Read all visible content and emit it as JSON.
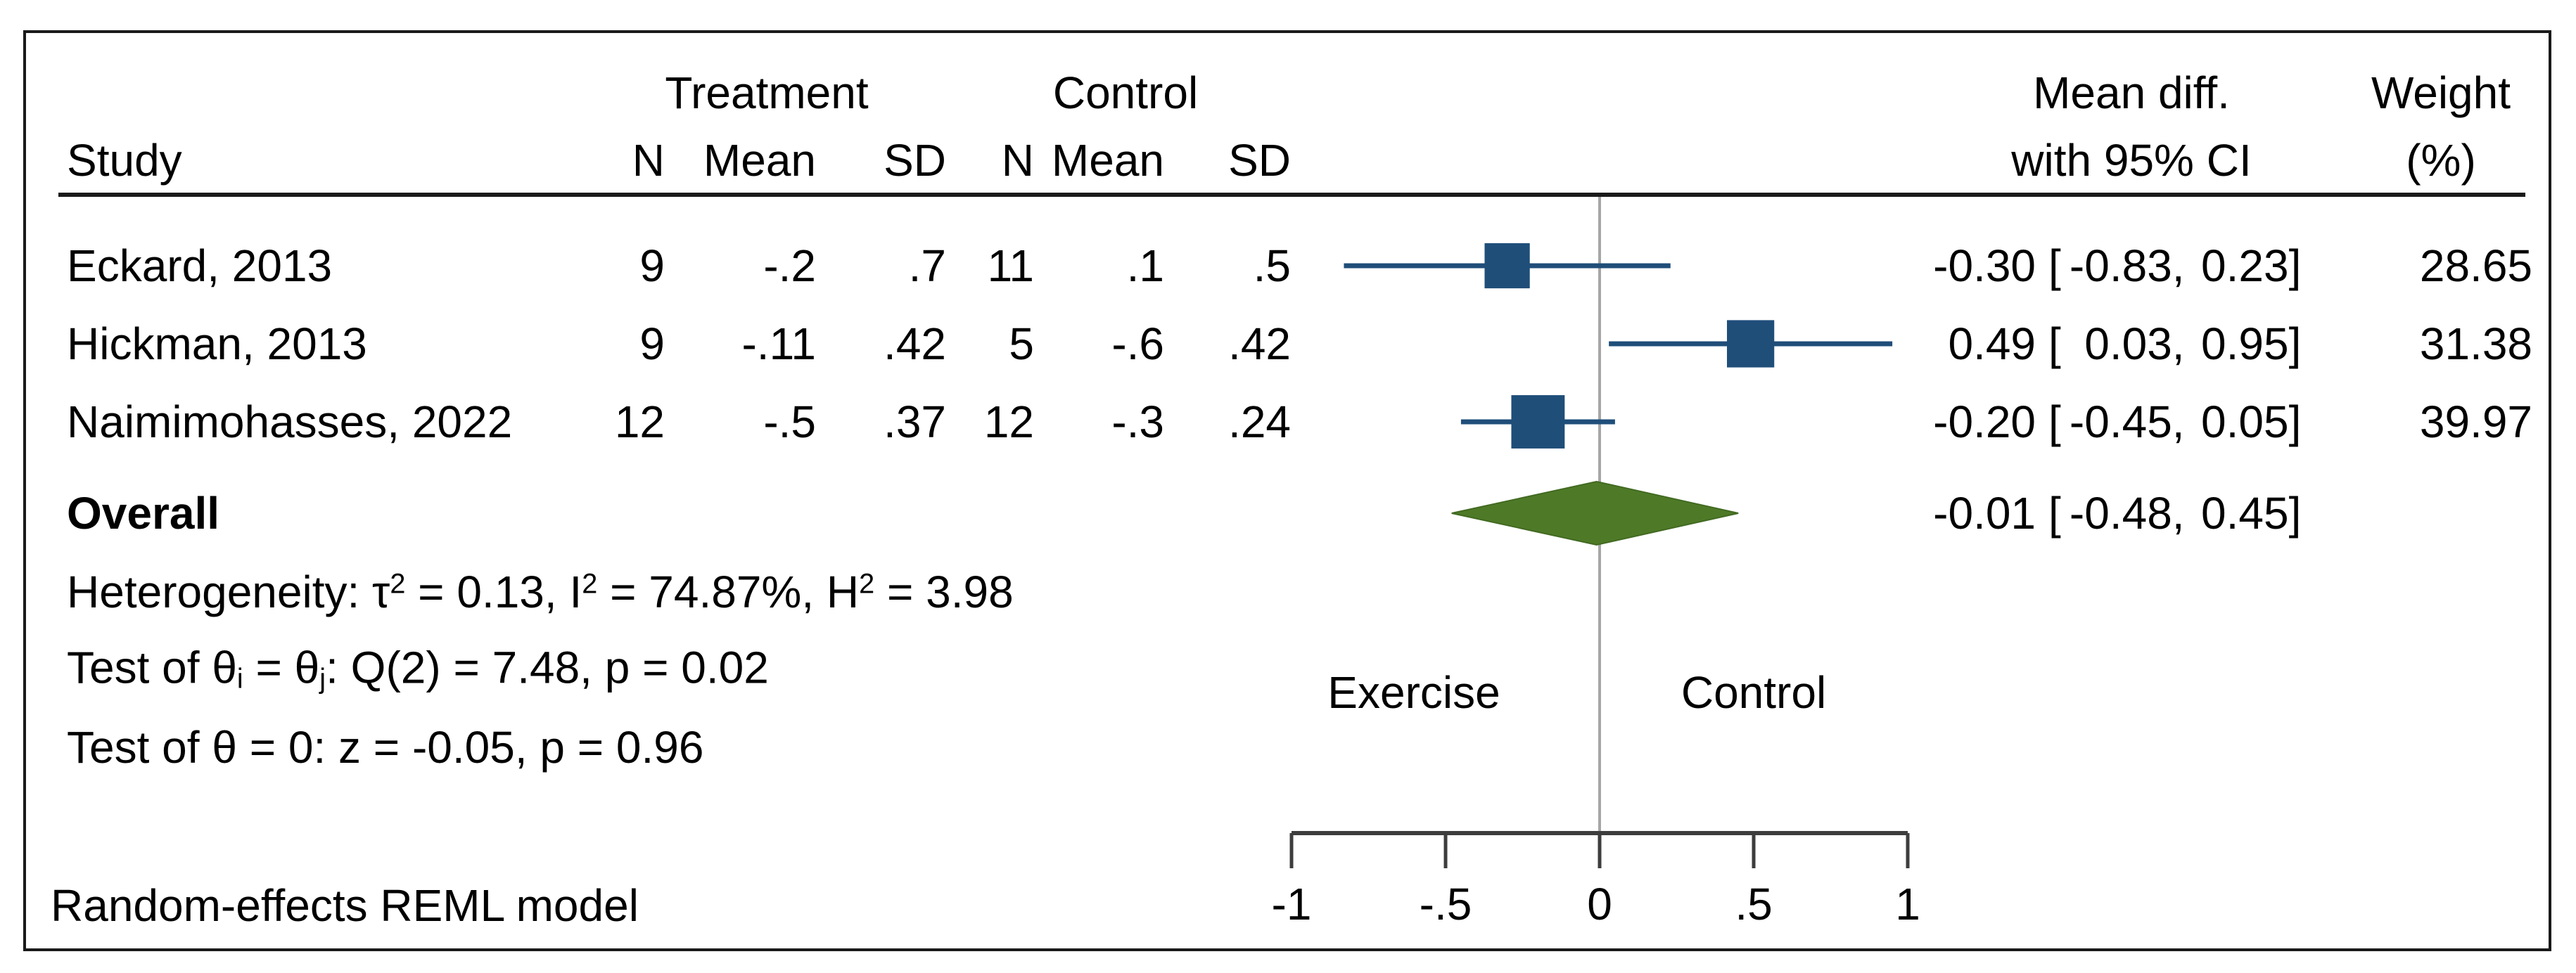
{
  "figure": {
    "header": {
      "study": "Study",
      "treatment_group": "Treatment",
      "control_group": "Control",
      "col_n": "N",
      "col_mean": "Mean",
      "col_sd": "SD",
      "effect_line1": "Mean diff.",
      "effect_line2": "with 95% CI",
      "weight_line1": "Weight",
      "weight_line2": "(%)"
    },
    "direction_left": "Exercise",
    "direction_right": "Control",
    "note": "Random-effects REML model"
  },
  "stats": {
    "heterogeneity": [
      {
        "t": "Heterogeneity: τ",
        "s": "n"
      },
      {
        "t": "2",
        "s": "sup"
      },
      {
        "t": " = 0.13, I",
        "s": "n"
      },
      {
        "t": "2",
        "s": "sup"
      },
      {
        "t": " = 74.87%, H",
        "s": "n"
      },
      {
        "t": "2",
        "s": "sup"
      },
      {
        "t": " = 3.98",
        "s": "n"
      }
    ],
    "test_q": [
      {
        "t": "Test of θ",
        "s": "n"
      },
      {
        "t": "i",
        "s": "sub"
      },
      {
        "t": " = θ",
        "s": "n"
      },
      {
        "t": "j",
        "s": "sub"
      },
      {
        "t": ": Q(2) = 7.48, p = 0.02",
        "s": "n"
      }
    ],
    "test_z": [
      {
        "t": "Test of θ = 0: z = -0.05, p = 0.96",
        "s": "n"
      }
    ]
  },
  "chart_data": {
    "type": "forest",
    "title": "",
    "x_axis": {
      "range": [
        -1,
        1
      ],
      "tick_values": [
        -1,
        -0.5,
        0,
        0.5,
        1
      ],
      "tick_labels": [
        "-1",
        "-.5",
        "0",
        ".5",
        "1"
      ]
    },
    "reference_line": 0,
    "studies": [
      {
        "label": "Eckard, 2013",
        "t_n": "9",
        "t_mean": "-.2",
        "t_sd": ".7",
        "c_n": "11",
        "c_mean": ".1",
        "c_sd": ".5",
        "est": -0.3,
        "lo": -0.83,
        "hi": 0.23,
        "weight": 28.65,
        "est_text": "-0.30",
        "lo_text": "-0.83",
        "hi_text": "0.23",
        "weight_text": "28.65"
      },
      {
        "label": "Hickman, 2013",
        "t_n": "9",
        "t_mean": "-.11",
        "t_sd": ".42",
        "c_n": "5",
        "c_mean": "-.6",
        "c_sd": ".42",
        "est": 0.49,
        "lo": 0.03,
        "hi": 0.95,
        "weight": 31.38,
        "est_text": "0.49",
        "lo_text": "0.03",
        "hi_text": "0.95",
        "weight_text": "31.38"
      },
      {
        "label": "Naimimohasses, 2022",
        "t_n": "12",
        "t_mean": "-.5",
        "t_sd": ".37",
        "c_n": "12",
        "c_mean": "-.3",
        "c_sd": ".24",
        "est": -0.2,
        "lo": -0.45,
        "hi": 0.05,
        "weight": 39.97,
        "est_text": "-0.20",
        "lo_text": "-0.45",
        "hi_text": "0.05",
        "weight_text": "39.97"
      }
    ],
    "overall": {
      "label": "Overall",
      "est": -0.01,
      "lo": -0.48,
      "hi": 0.45,
      "est_text": "-0.01",
      "lo_text": "-0.48",
      "hi_text": "0.45"
    },
    "colors": {
      "marker": "#1F4E79",
      "diamond": "#4E7A27",
      "diamond_edge": "#426A22",
      "reference": "#A6A6A6",
      "axis": "#3D3D3D",
      "border": "#1A1A1A",
      "text": "#000000"
    }
  }
}
